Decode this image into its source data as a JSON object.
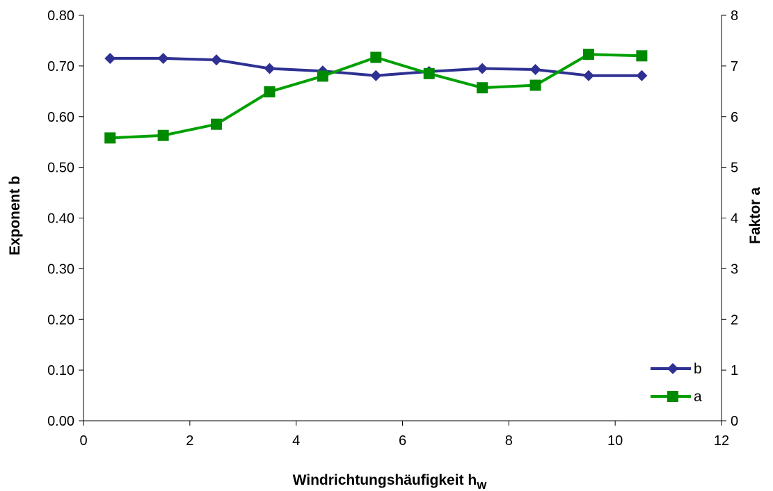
{
  "chart_data": {
    "type": "line",
    "x": [
      0.5,
      1.5,
      2.5,
      3.5,
      4.5,
      5.5,
      6.5,
      7.5,
      8.5,
      9.5,
      10.5
    ],
    "series": [
      {
        "name": "b",
        "axis": "left",
        "color": "#2e3192",
        "marker": "diamond",
        "values": [
          0.715,
          0.715,
          0.712,
          0.695,
          0.69,
          0.681,
          0.689,
          0.695,
          0.693,
          0.681,
          0.681
        ]
      },
      {
        "name": "a",
        "axis": "right",
        "color": "#00a000",
        "marker_color": "#008a00",
        "marker": "square",
        "values": [
          5.58,
          5.63,
          5.85,
          6.49,
          6.8,
          7.17,
          6.85,
          6.57,
          6.62,
          7.23,
          7.2
        ]
      }
    ],
    "xlabel_main": "Windrichtungshäufigkeit  h",
    "xlabel_sub": "W",
    "ylabel_left": "Exponent b",
    "ylabel_right": "Faktor a",
    "xlim": [
      0,
      12
    ],
    "ylim_left": [
      0,
      0.8
    ],
    "ylim_right": [
      0,
      8
    ],
    "x_ticks": [
      "0",
      "2",
      "4",
      "6",
      "8",
      "10",
      "12"
    ],
    "y_left_ticks": [
      "0.00",
      "0.10",
      "0.20",
      "0.30",
      "0.40",
      "0.50",
      "0.60",
      "0.70",
      "0.80"
    ],
    "y_right_ticks": [
      "0",
      "1",
      "2",
      "3",
      "4",
      "5",
      "6",
      "7",
      "8"
    ],
    "grid": false,
    "legend_position": "bottom-right"
  }
}
